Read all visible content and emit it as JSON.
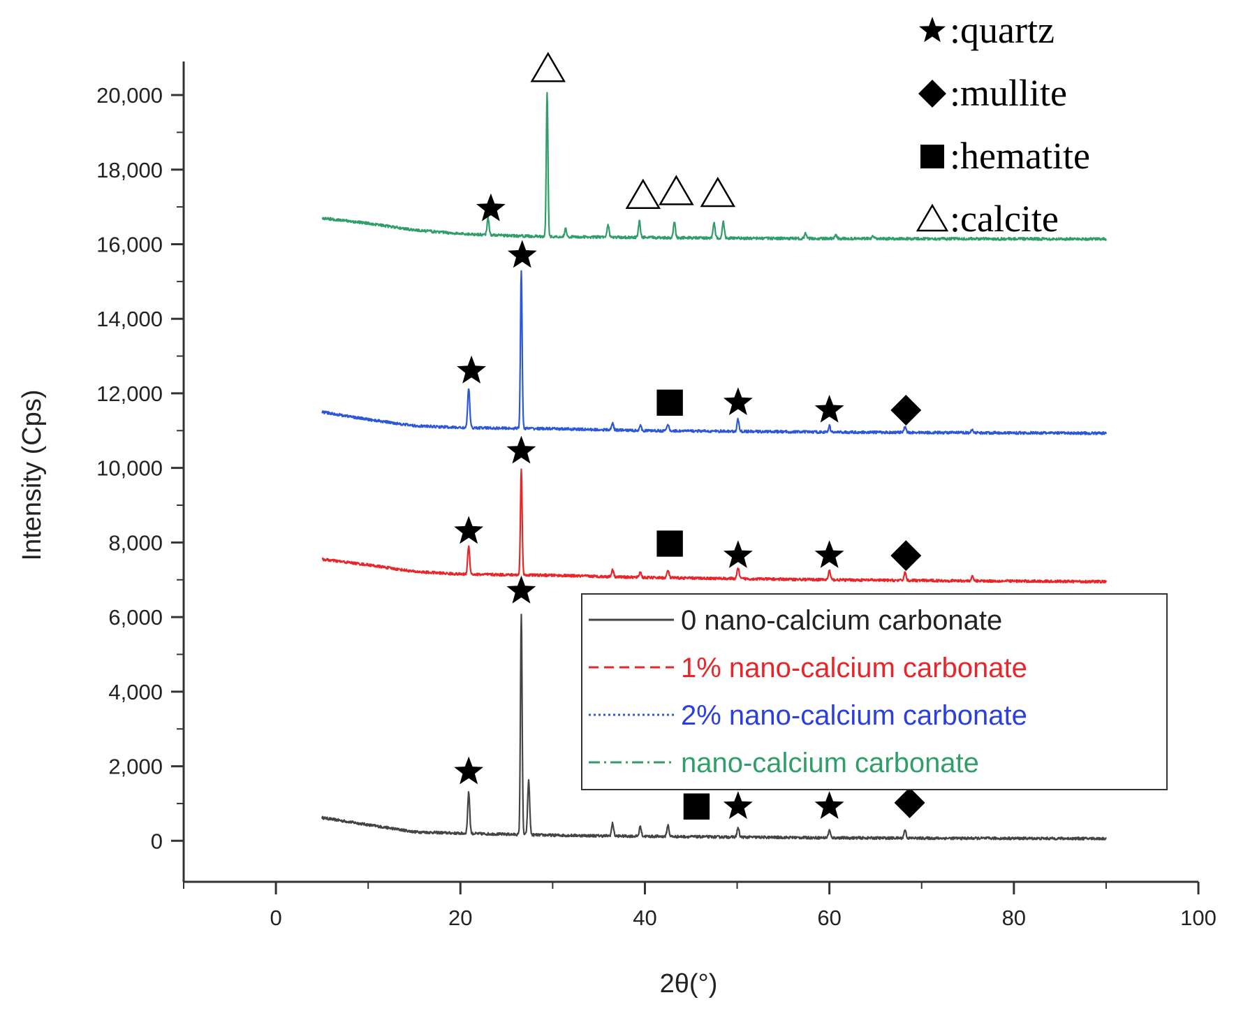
{
  "chart_data": {
    "type": "line",
    "title": "",
    "xlabel": "2θ(°)",
    "ylabel": "Intensity (Cps)",
    "xlim": [
      -10,
      100
    ],
    "ylim": [
      -1100,
      20900
    ],
    "xticks": [
      0,
      20,
      40,
      60,
      80,
      100
    ],
    "xtick_labels": [
      "0",
      "20",
      "40",
      "60",
      "80",
      "100"
    ],
    "yticks": [
      0,
      2000,
      4000,
      6000,
      8000,
      10000,
      12000,
      14000,
      16000,
      18000,
      20000
    ],
    "ytick_labels": [
      "0",
      "2,000",
      "4,000",
      "6,000",
      "8,000",
      "10,000",
      "12,000",
      "14,000",
      "16,000",
      "18,000",
      "20,000"
    ],
    "series": [
      {
        "name": "0 nano-calcium carbonate",
        "color": "#444444",
        "dash": "solid",
        "x_range": [
          5,
          90
        ],
        "baseline": [
          [
            5,
            620
          ],
          [
            10,
            430
          ],
          [
            15,
            240
          ],
          [
            20,
            200
          ],
          [
            30,
            150
          ],
          [
            40,
            120
          ],
          [
            50,
            100
          ],
          [
            60,
            80
          ],
          [
            70,
            70
          ],
          [
            90,
            60
          ]
        ],
        "peaks": [
          [
            20.9,
            1300
          ],
          [
            26.6,
            6100
          ],
          [
            27.4,
            1620
          ],
          [
            36.5,
            470
          ],
          [
            39.5,
            380
          ],
          [
            42.5,
            420
          ],
          [
            50.1,
            350
          ],
          [
            60.0,
            280
          ],
          [
            68.2,
            300
          ]
        ]
      },
      {
        "name": "1% nano-calcium carbonate",
        "color": "#e8262a",
        "dash": "dashed",
        "x_range": [
          5,
          90
        ],
        "baseline": [
          [
            5,
            7550
          ],
          [
            10,
            7400
          ],
          [
            15,
            7220
          ],
          [
            20,
            7150
          ],
          [
            30,
            7120
          ],
          [
            40,
            7060
          ],
          [
            50,
            7030
          ],
          [
            60,
            7000
          ],
          [
            70,
            6980
          ],
          [
            90,
            6950
          ]
        ],
        "peaks": [
          [
            20.9,
            7900
          ],
          [
            26.6,
            10000
          ],
          [
            36.5,
            7280
          ],
          [
            39.5,
            7210
          ],
          [
            42.5,
            7250
          ],
          [
            50.1,
            7310
          ],
          [
            60.0,
            7250
          ],
          [
            68.2,
            7200
          ],
          [
            75.5,
            7080
          ]
        ]
      },
      {
        "name": "2% nano-calcium carbonate",
        "color": "#2b57d8",
        "dash": "dotted",
        "x_range": [
          5,
          90
        ],
        "baseline": [
          [
            5,
            11500
          ],
          [
            10,
            11300
          ],
          [
            15,
            11130
          ],
          [
            20,
            11080
          ],
          [
            30,
            11050
          ],
          [
            40,
            11000
          ],
          [
            50,
            10980
          ],
          [
            60,
            10960
          ],
          [
            70,
            10950
          ],
          [
            90,
            10930
          ]
        ],
        "peaks": [
          [
            20.9,
            12150
          ],
          [
            26.6,
            15300
          ],
          [
            36.5,
            11200
          ],
          [
            39.5,
            11130
          ],
          [
            42.5,
            11160
          ],
          [
            50.1,
            11300
          ],
          [
            60.0,
            11120
          ],
          [
            68.2,
            11090
          ],
          [
            75.5,
            11030
          ]
        ]
      },
      {
        "name": "nano-calcium carbonate",
        "color": "#2f9e68",
        "dash": "dashdot",
        "x_range": [
          5,
          90
        ],
        "baseline": [
          [
            5,
            16700
          ],
          [
            10,
            16560
          ],
          [
            15,
            16380
          ],
          [
            20,
            16280
          ],
          [
            25,
            16230
          ],
          [
            30,
            16200
          ],
          [
            40,
            16180
          ],
          [
            50,
            16160
          ],
          [
            60,
            16150
          ],
          [
            90,
            16140
          ]
        ],
        "peaks": [
          [
            23.0,
            16700
          ],
          [
            29.4,
            20100
          ],
          [
            31.4,
            16420
          ],
          [
            36.0,
            16520
          ],
          [
            39.4,
            16620
          ],
          [
            43.2,
            16600
          ],
          [
            47.5,
            16560
          ],
          [
            48.5,
            16600
          ],
          [
            57.4,
            16280
          ],
          [
            60.7,
            16240
          ],
          [
            64.7,
            16200
          ]
        ]
      }
    ],
    "legend": {
      "placement": "center-right",
      "entries": [
        {
          "label": "0 nano-calcium carbonate",
          "color": "#222222",
          "line_color": "#444444",
          "dash": "solid"
        },
        {
          "label": "1% nano-calcium carbonate",
          "color": "#e8262a",
          "line_color": "#e8262a",
          "dash": "dashed"
        },
        {
          "label": "2% nano-calcium carbonate",
          "color": "#2b3fe0",
          "line_color": "#2b57d8",
          "dash": "dotted"
        },
        {
          "label": "nano-calcium carbonate",
          "color": "#2f9e68",
          "line_color": "#2f9e68",
          "dash": "dashdot"
        }
      ]
    },
    "phase_legend": [
      {
        "symbol": "star",
        "label": ":quartz"
      },
      {
        "symbol": "diamond",
        "label": ":mullite"
      },
      {
        "symbol": "square",
        "label": ":hematite"
      },
      {
        "symbol": "triangle",
        "label": ":calcite"
      }
    ],
    "annotations": [
      {
        "symbol": "star",
        "phase": "quartz",
        "x": 20.9,
        "y": 1850
      },
      {
        "symbol": "star",
        "phase": "quartz",
        "x": 26.6,
        "y": 6700
      },
      {
        "symbol": "square",
        "phase": "hematite",
        "x": 45.6,
        "y": 920
      },
      {
        "symbol": "star",
        "phase": "quartz",
        "x": 50.1,
        "y": 920
      },
      {
        "symbol": "star",
        "phase": "quartz",
        "x": 60.0,
        "y": 920
      },
      {
        "symbol": "diamond",
        "phase": "mullite",
        "x": 68.7,
        "y": 1020
      },
      {
        "symbol": "star",
        "phase": "quartz",
        "x": 20.9,
        "y": 8300
      },
      {
        "symbol": "star",
        "phase": "quartz",
        "x": 26.6,
        "y": 10450
      },
      {
        "symbol": "square",
        "phase": "hematite",
        "x": 42.7,
        "y": 7970
      },
      {
        "symbol": "star",
        "phase": "quartz",
        "x": 50.1,
        "y": 7650
      },
      {
        "symbol": "star",
        "phase": "quartz",
        "x": 60.0,
        "y": 7650
      },
      {
        "symbol": "diamond",
        "phase": "mullite",
        "x": 68.3,
        "y": 7650
      },
      {
        "symbol": "star",
        "phase": "quartz",
        "x": 21.2,
        "y": 12600
      },
      {
        "symbol": "star",
        "phase": "quartz",
        "x": 26.7,
        "y": 15700
      },
      {
        "symbol": "square",
        "phase": "hematite",
        "x": 42.7,
        "y": 11750
      },
      {
        "symbol": "star",
        "phase": "quartz",
        "x": 50.1,
        "y": 11750
      },
      {
        "symbol": "star",
        "phase": "quartz",
        "x": 60.0,
        "y": 11550
      },
      {
        "symbol": "diamond",
        "phase": "mullite",
        "x": 68.3,
        "y": 11550
      },
      {
        "symbol": "star",
        "phase": "quartz",
        "x": 23.3,
        "y": 16950
      },
      {
        "symbol": "triangle",
        "phase": "calcite",
        "x": 29.5,
        "y": 20700
      },
      {
        "symbol": "triangle",
        "phase": "calcite",
        "x": 39.8,
        "y": 17300
      },
      {
        "symbol": "triangle",
        "phase": "calcite",
        "x": 43.4,
        "y": 17400
      },
      {
        "symbol": "triangle",
        "phase": "calcite",
        "x": 47.9,
        "y": 17350
      }
    ]
  }
}
